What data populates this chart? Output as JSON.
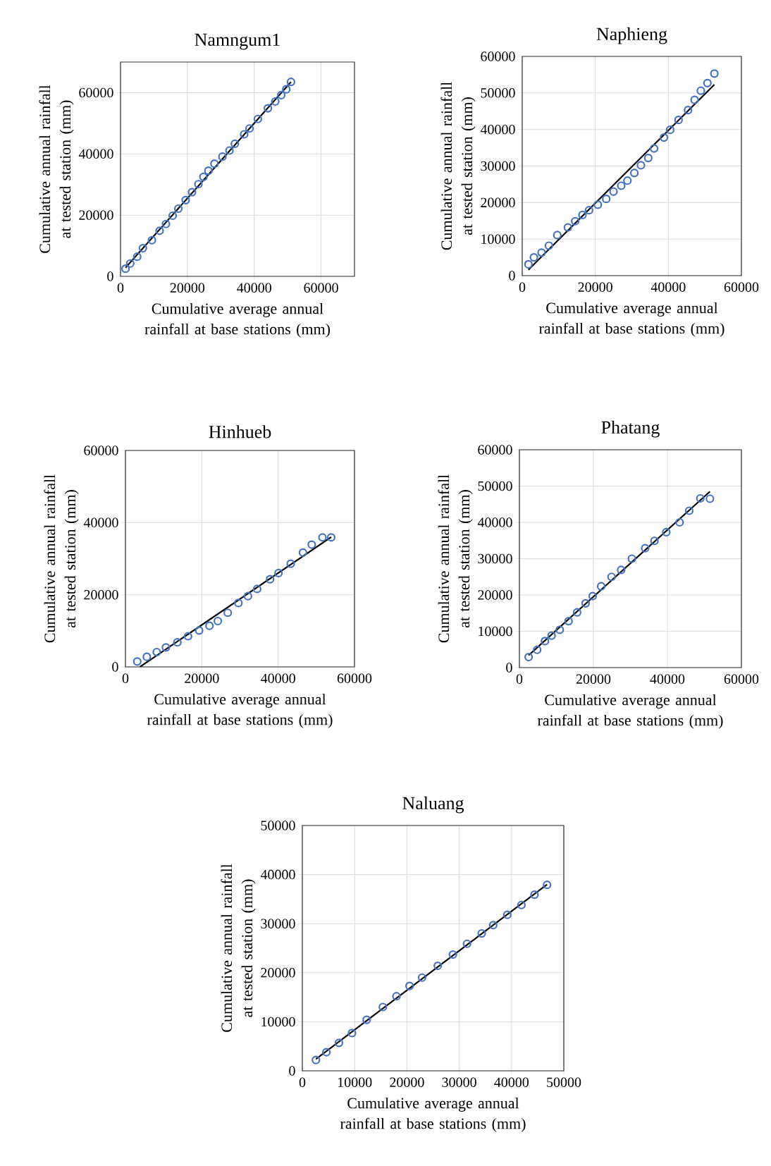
{
  "chart_data": [
    {
      "type": "scatter",
      "title": "Namngum1",
      "xlabel": "Cumulative average annual rainfall at base stations (mm)",
      "ylabel": "Cumulative  annual rainfall at tested station (mm)",
      "xlim": [
        0,
        70000
      ],
      "ylim": [
        0,
        70000
      ],
      "xticks": [
        0,
        20000,
        40000,
        60000
      ],
      "yticks": [
        0,
        20000,
        40000,
        60000
      ],
      "grid": true,
      "marker": "circle",
      "series": [
        {
          "color": "#4472c4",
          "x": [
            1500,
            2900,
            5000,
            6700,
            9400,
            11700,
            13600,
            15600,
            17300,
            19500,
            21400,
            23300,
            24800,
            26300,
            28100,
            30500,
            32600,
            34200,
            37000,
            38600,
            41100,
            44100,
            46300,
            48100,
            49600,
            51000
          ],
          "values": [
            2500,
            4200,
            6400,
            9200,
            11800,
            14900,
            17100,
            19800,
            22100,
            24900,
            27500,
            30100,
            32500,
            34500,
            36800,
            39100,
            41100,
            43300,
            46400,
            48300,
            51400,
            54900,
            57100,
            59200,
            61100,
            63500
          ]
        },
        {
          "type": "line",
          "color": "#000000",
          "marker": "none",
          "x": [
            1500,
            51000
          ],
          "values": [
            2800,
            63500
          ]
        }
      ]
    },
    {
      "type": "scatter",
      "title": "Naphieng",
      "xlabel": "Cumulative average annual rainfall at base stations (mm)",
      "ylabel": "Cumulative  annual rainfall at tested station (mm)",
      "xlim": [
        0,
        60000
      ],
      "ylim": [
        0,
        60000
      ],
      "xticks": [
        0,
        20000,
        40000,
        60000
      ],
      "yticks": [
        0,
        10000,
        20000,
        30000,
        40000,
        50000,
        60000
      ],
      "grid": true,
      "marker": "circle",
      "series": [
        {
          "color": "#4472c4",
          "x": [
            1700,
            3200,
            5300,
            7300,
            9600,
            12500,
            14500,
            16500,
            18300,
            20700,
            23000,
            25000,
            27100,
            28800,
            30700,
            32500,
            34500,
            36100,
            38800,
            40500,
            42800,
            45400,
            47200,
            48900,
            50700,
            52600
          ],
          "values": [
            3100,
            5000,
            6300,
            8200,
            11100,
            13200,
            14900,
            16600,
            17900,
            19400,
            21000,
            23000,
            24600,
            26000,
            28100,
            30200,
            32200,
            34800,
            37800,
            39900,
            42600,
            45300,
            48100,
            50600,
            52700,
            55300
          ]
        },
        {
          "type": "line",
          "color": "#000000",
          "marker": "none",
          "x": [
            1700,
            52600
          ],
          "values": [
            1600,
            52300
          ]
        }
      ]
    },
    {
      "type": "scatter",
      "title": "Hinhueb",
      "xlabel": "Cumulative average annual rainfall at base stations (mm)",
      "ylabel": "Cumulative  annual rainfall at tested station (mm)",
      "xlim": [
        0,
        60000
      ],
      "ylim": [
        0,
        60000
      ],
      "xticks": [
        0,
        20000,
        40000,
        60000
      ],
      "yticks": [
        0,
        20000,
        40000,
        60000
      ],
      "grid": true,
      "marker": "circle",
      "series": [
        {
          "color": "#4472c4",
          "x": [
            3100,
            5600,
            8200,
            10600,
            13600,
            16400,
            19300,
            22000,
            24200,
            26800,
            29600,
            32100,
            34500,
            37900,
            40100,
            43300,
            46500,
            48800,
            51600,
            53900
          ],
          "values": [
            1500,
            2800,
            4100,
            5400,
            6800,
            8500,
            10100,
            11400,
            12700,
            15000,
            17700,
            19600,
            21600,
            24300,
            26000,
            28600,
            31700,
            33900,
            35900,
            35900
          ]
        },
        {
          "type": "line",
          "color": "#000000",
          "marker": "none",
          "x": [
            3800,
            53900
          ],
          "values": [
            0,
            36000
          ]
        }
      ]
    },
    {
      "type": "scatter",
      "title": "Phatang",
      "xlabel": "Cumulative average annual rainfall at base stations (mm)",
      "ylabel": "Cumulative  annual rainfall at tested station (mm)",
      "xlim": [
        0,
        60000
      ],
      "ylim": [
        0,
        60000
      ],
      "xticks": [
        0,
        20000,
        40000,
        60000
      ],
      "yticks": [
        0,
        10000,
        20000,
        30000,
        40000,
        50000,
        60000
      ],
      "grid": true,
      "marker": "circle",
      "series": [
        {
          "color": "#4472c4",
          "x": [
            2500,
            4800,
            6900,
            8700,
            10900,
            13300,
            15600,
            17900,
            19800,
            22100,
            24900,
            27500,
            30400,
            34000,
            36500,
            39700,
            43300,
            45900,
            48900,
            51500
          ],
          "values": [
            2900,
            4900,
            7300,
            8800,
            10400,
            12800,
            15200,
            17700,
            19700,
            22400,
            25000,
            26900,
            30000,
            32900,
            34900,
            37300,
            40000,
            43200,
            46600,
            46500
          ]
        },
        {
          "type": "line",
          "color": "#000000",
          "marker": "none",
          "x": [
            2500,
            51500
          ],
          "values": [
            3400,
            48500
          ]
        }
      ]
    },
    {
      "type": "scatter",
      "title": "Naluang",
      "xlabel": "Cumulative average annual rainfall at base stations (mm)",
      "ylabel": "Cumulative  annual rainfall at tested station (mm)",
      "xlim": [
        0,
        50000
      ],
      "ylim": [
        0,
        50000
      ],
      "xticks": [
        0,
        10000,
        20000,
        30000,
        40000,
        50000
      ],
      "yticks": [
        0,
        10000,
        20000,
        30000,
        40000,
        50000
      ],
      "grid": true,
      "marker": "circle",
      "series": [
        {
          "color": "#4472c4",
          "x": [
            2600,
            4600,
            7000,
            9500,
            12300,
            15400,
            18000,
            20500,
            22900,
            25900,
            28800,
            31500,
            34300,
            36500,
            39200,
            41900,
            44400,
            46800
          ],
          "values": [
            2200,
            3800,
            5700,
            7700,
            10400,
            13000,
            15200,
            17300,
            19000,
            21400,
            23700,
            25900,
            28000,
            29700,
            31800,
            33800,
            35900,
            37900
          ]
        },
        {
          "type": "line",
          "color": "#000000",
          "marker": "none",
          "x": [
            2600,
            46800
          ],
          "values": [
            2400,
            38000
          ]
        }
      ]
    }
  ]
}
